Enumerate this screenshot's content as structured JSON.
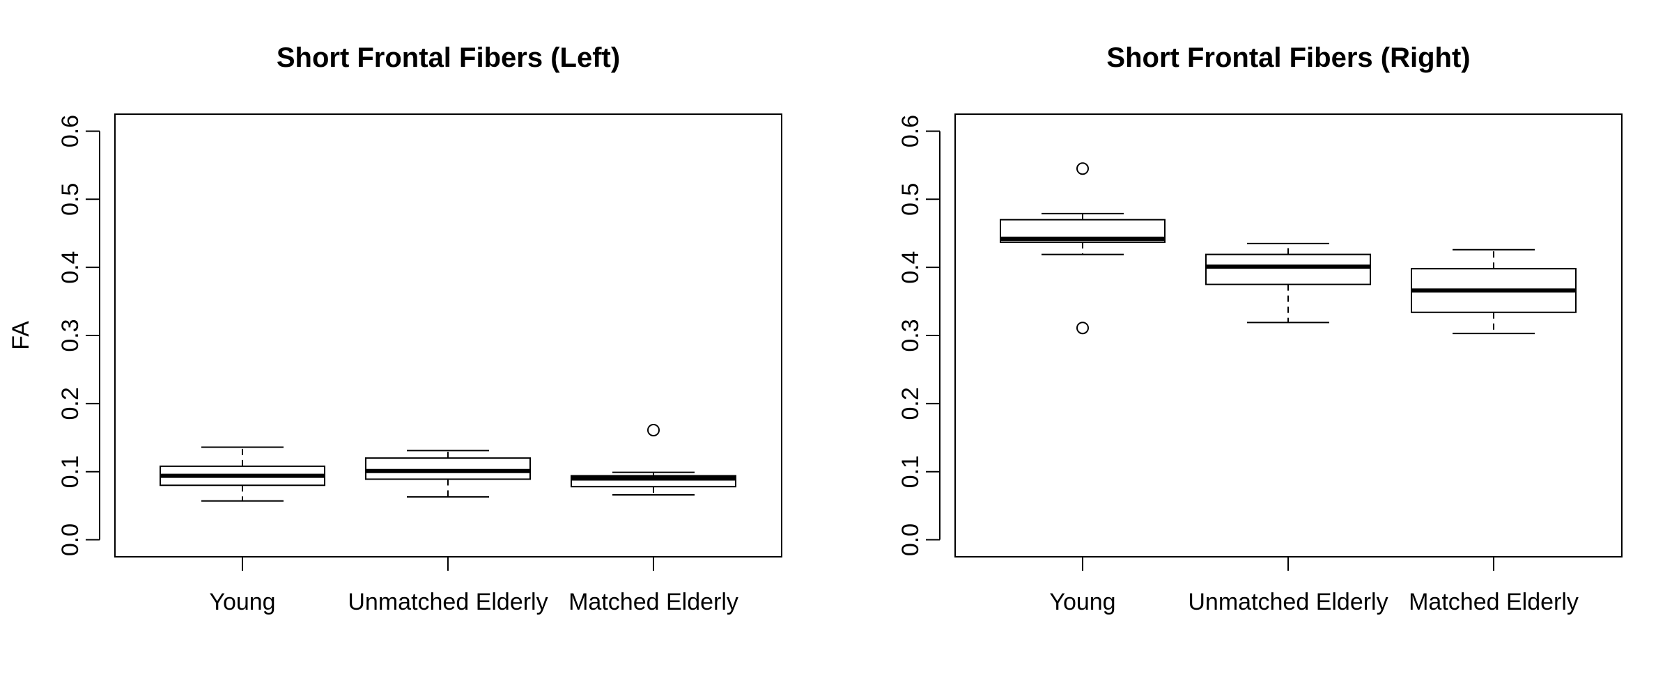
{
  "chart_data": [
    {
      "type": "boxplot",
      "title": "Short Frontal Fibers (Left)",
      "ylabel": "FA",
      "xlabel": "",
      "ylim": [
        -0.025,
        0.625
      ],
      "yticks": [
        "0.0",
        "0.1",
        "0.2",
        "0.3",
        "0.4",
        "0.5",
        "0.6"
      ],
      "categories": [
        "Young",
        "Unmatched Elderly",
        "Matched Elderly"
      ],
      "boxes": [
        {
          "whisker_low": 0.057,
          "q1": 0.08,
          "median": 0.094,
          "q3": 0.108,
          "whisker_high": 0.136,
          "outliers": []
        },
        {
          "whisker_low": 0.063,
          "q1": 0.089,
          "median": 0.101,
          "q3": 0.12,
          "whisker_high": 0.131,
          "outliers": []
        },
        {
          "whisker_low": 0.066,
          "q1": 0.078,
          "median": 0.09,
          "q3": 0.094,
          "whisker_high": 0.099,
          "outliers": [
            0.161
          ]
        }
      ]
    },
    {
      "type": "boxplot",
      "title": "Short Frontal Fibers (Right)",
      "ylabel": "",
      "xlabel": "",
      "ylim": [
        -0.025,
        0.625
      ],
      "yticks": [
        "0.0",
        "0.1",
        "0.2",
        "0.3",
        "0.4",
        "0.5",
        "0.6"
      ],
      "categories": [
        "Young",
        "Unmatched Elderly",
        "Matched Elderly"
      ],
      "boxes": [
        {
          "whisker_low": 0.419,
          "q1": 0.437,
          "median": 0.442,
          "q3": 0.47,
          "whisker_high": 0.479,
          "outliers": [
            0.545,
            0.311
          ]
        },
        {
          "whisker_low": 0.319,
          "q1": 0.375,
          "median": 0.401,
          "q3": 0.419,
          "whisker_high": 0.435,
          "outliers": []
        },
        {
          "whisker_low": 0.303,
          "q1": 0.334,
          "median": 0.366,
          "q3": 0.398,
          "whisker_high": 0.426,
          "outliers": []
        }
      ]
    }
  ]
}
